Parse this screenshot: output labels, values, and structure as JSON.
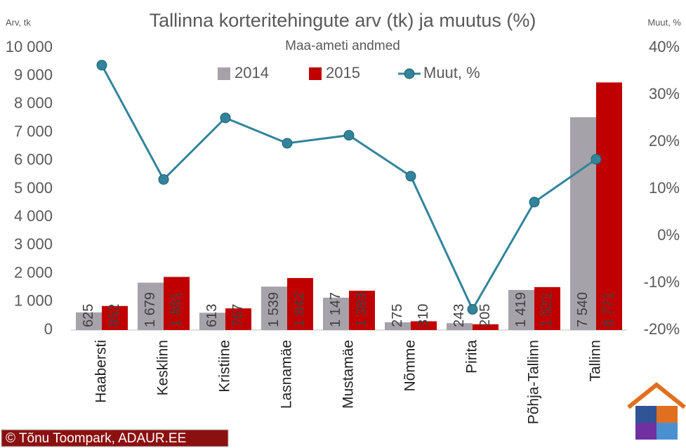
{
  "chart_data": {
    "type": "bar_line",
    "title": "Tallinna korteritehingute arv (tk) ja muutus (%)",
    "subtitle": "Maa-ameti andmed",
    "y_axis_label": "Arv, tk",
    "y2_axis_label": "Muut, %",
    "credit": "© Tõnu Toompark, ADAUR.EE",
    "categories": [
      "Haabersti",
      "Kesklinn",
      "Kristiine",
      "Lasnamäe",
      "Mustamäe",
      "Nõmme",
      "Pirita",
      "Põhja-Tallinn",
      "Tallinn"
    ],
    "series": [
      {
        "name": "2014",
        "type": "bar",
        "color": "#a6a2aa",
        "values": [
          625,
          1679,
          613,
          1539,
          1147,
          275,
          243,
          1419,
          7540
        ],
        "value_labels": [
          "625",
          "1 679",
          "613",
          "1 539",
          "1 147",
          "275",
          "243",
          "1 419",
          "7 540"
        ]
      },
      {
        "name": "2015",
        "type": "bar",
        "color": "#c00000",
        "values": [
          852,
          1881,
          767,
          1842,
          1393,
          310,
          205,
          1521,
          8771
        ],
        "value_labels": [
          "852",
          "1 881",
          "767",
          "1 842",
          "1 393",
          "310",
          "205",
          "1 521",
          "8 771"
        ]
      },
      {
        "name": "Muut, %",
        "type": "line",
        "axis": "y2",
        "color": "#31849b",
        "values": [
          36.3,
          12.0,
          25.1,
          19.7,
          21.4,
          12.7,
          -15.6,
          7.2,
          16.3
        ]
      }
    ],
    "ylim": [
      0,
      10000
    ],
    "yticks": [
      0,
      {
        "value": 1000,
        "label": "1 000"
      },
      {
        "value": 2000,
        "label": "2 000"
      },
      {
        "value": 3000,
        "label": "3 000"
      },
      {
        "value": 4000,
        "label": "4 000"
      },
      {
        "value": 5000,
        "label": "5 000"
      },
      {
        "value": 6000,
        "label": "6 000"
      },
      {
        "value": 7000,
        "label": "7 000"
      },
      {
        "value": 8000,
        "label": "8 000"
      },
      {
        "value": 9000,
        "label": "9 000"
      },
      {
        "value": 10000,
        "label": "10 000"
      }
    ],
    "y2lim": [
      -20,
      40
    ],
    "y2ticks": [
      {
        "value": -20,
        "label": "-20%"
      },
      {
        "value": -10,
        "label": "-10%"
      },
      {
        "value": 0,
        "label": "0%"
      },
      {
        "value": 10,
        "label": "10%"
      },
      {
        "value": 20,
        "label": "20%"
      },
      {
        "value": 30,
        "label": "30%"
      },
      {
        "value": 40,
        "label": "40%"
      }
    ],
    "legend": "top"
  }
}
